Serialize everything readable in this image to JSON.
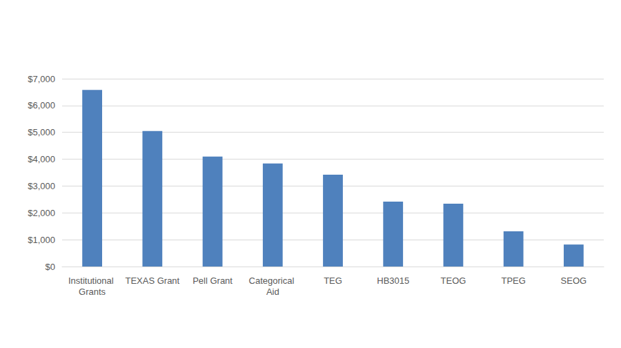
{
  "chart_data": {
    "type": "bar",
    "categories": [
      "Institutional Grants",
      "TEXAS Grant",
      "Pell Grant",
      "Categorical Aid",
      "TEG",
      "HB3015",
      "TEOG",
      "TPEG",
      "SEOG"
    ],
    "values": [
      6580,
      5050,
      4100,
      3840,
      3420,
      2420,
      2340,
      1310,
      820
    ],
    "color": "#4f81bd",
    "ylim": [
      0,
      7000
    ],
    "yticks": [
      {
        "value": 0,
        "label": "$0"
      },
      {
        "value": 1000,
        "label": "$1,000"
      },
      {
        "value": 2000,
        "label": "$2,000"
      },
      {
        "value": 3000,
        "label": "$3,000"
      },
      {
        "value": 4000,
        "label": "$4,000"
      },
      {
        "value": 5000,
        "label": "$5,000"
      },
      {
        "value": 6000,
        "label": "$6,000"
      },
      {
        "value": 7000,
        "label": "$7,000"
      }
    ],
    "grid": true
  }
}
